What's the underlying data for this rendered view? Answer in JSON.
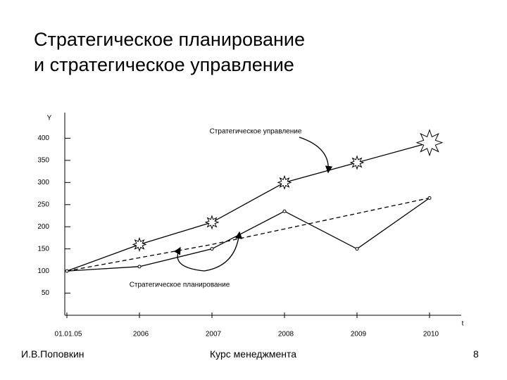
{
  "title_lines": [
    "Стратегическое планирование",
    "и стратегическое управление"
  ],
  "chart_data": {
    "type": "line",
    "y_label": "Y",
    "x_label": "t",
    "categories": [
      "01.01.05",
      "2006",
      "2007",
      "2008",
      "2009",
      "2010"
    ],
    "series": [
      {
        "name": "Стратегическое управление",
        "color": "#000000",
        "style": "solid",
        "marker": "star",
        "values": [
          100,
          160,
          210,
          300,
          345,
          390
        ]
      },
      {
        "name": "Стратегическое планирование",
        "color": "#000000",
        "style": "dashed",
        "marker": "none",
        "values": [
          100,
          130,
          160,
          195,
          230,
          265
        ]
      },
      {
        "color": "#000000",
        "style": "solid",
        "marker": "circle",
        "values": [
          100,
          110,
          150,
          235,
          150,
          265
        ]
      }
    ],
    "ylim": [
      0,
      450
    ],
    "yticks": [
      50,
      100,
      150,
      200,
      250,
      300,
      350,
      400
    ]
  },
  "footer": {
    "author": "И.В.Поповкин",
    "course": "Курс менеджмента",
    "page": "8"
  }
}
